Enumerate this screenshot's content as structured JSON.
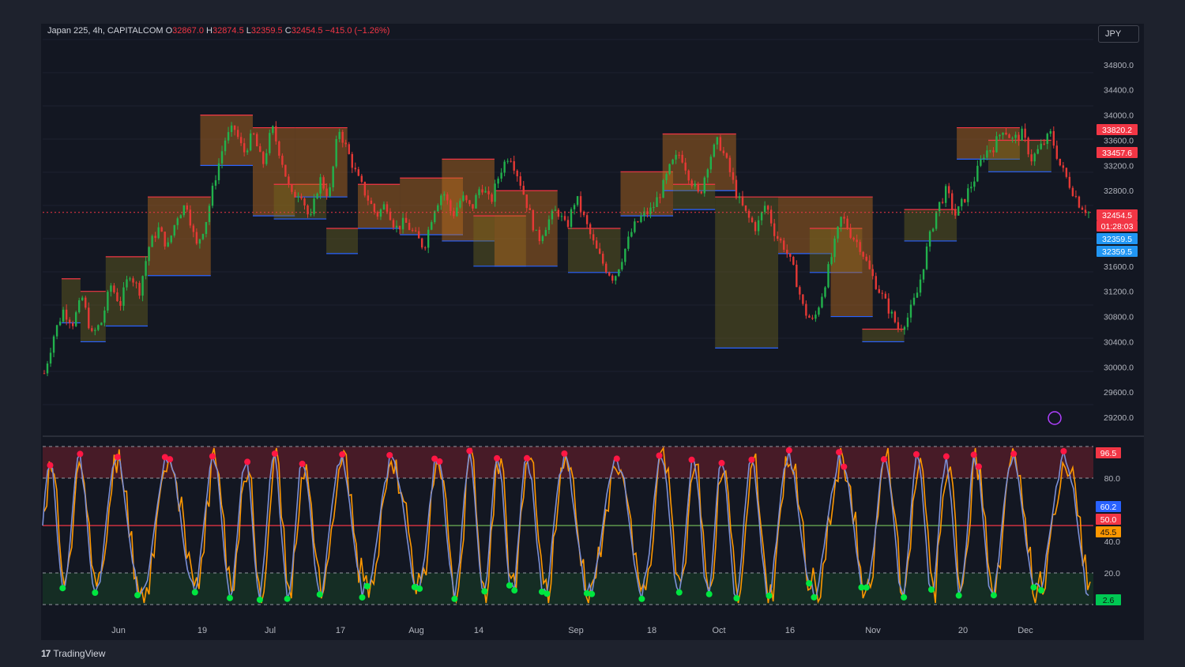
{
  "header": {
    "symbol": "Japan 225, 4h, CAPITALCOM",
    "o_label": "O",
    "o_value": "32867.0",
    "h_label": "H",
    "h_value": "32874.5",
    "l_label": "L",
    "l_value": "32359.5",
    "c_label": "C",
    "c_value": "32454.5",
    "change": "−415.0 (−1.26%)"
  },
  "currency": "JPY",
  "watermark": "TradingView",
  "colors": {
    "bg": "#131722",
    "up": "#26a69a",
    "down": "#ef5350",
    "candle_up": "#22b14c",
    "candle_down": "#e53935",
    "supply": "#f23645",
    "demand": "#2962ff",
    "k_line": "#7b8fd6",
    "d_line": "#ff9800"
  },
  "chart_data": [
    {
      "type": "candlestick",
      "title": "",
      "price_axis": {
        "ticks": [
          "34800.0",
          "34400.0",
          "34000.0",
          "33600.0",
          "33200.0",
          "32800.0",
          "31600.0",
          "31200.0",
          "30800.0",
          "30400.0",
          "30000.0",
          "29600.0",
          "29200.0"
        ],
        "range": [
          29050,
          35200
        ]
      },
      "time_axis": [
        "Jun",
        "19",
        "Jul",
        "17",
        "Aug",
        "14",
        "Sep",
        "18",
        "Oct",
        "16",
        "Nov",
        "20",
        "Dec"
      ],
      "price_labels": [
        {
          "text": "33820.2",
          "color": "#f23645"
        },
        {
          "text": "33457.6",
          "color": "#f23645"
        },
        {
          "text": "32454.5",
          "color": "#f23645"
        },
        {
          "text": "01:28:03",
          "color": "#f23645"
        },
        {
          "text": "32359.5",
          "color": "#2196f3"
        },
        {
          "text": "32359.5",
          "color": "#2196f3"
        }
      ],
      "close_path": [
        29900,
        30500,
        30900,
        30700,
        31100,
        30500,
        30700,
        31300,
        31000,
        31500,
        31200,
        31900,
        32200,
        31900,
        32400,
        32600,
        31900,
        32300,
        33000,
        33600,
        33800,
        33400,
        33700,
        33200,
        33800,
        33300,
        32700,
        32800,
        32300,
        33000,
        32700,
        33800,
        33400,
        33000,
        32700,
        32400,
        32600,
        32200,
        32300,
        32100,
        31900,
        32500,
        32800,
        32400,
        32700,
        32500,
        32900,
        32600,
        33100,
        33400,
        33000,
        32500,
        32000,
        32300,
        32500,
        32200,
        32700,
        32300,
        31900,
        31600,
        31400,
        31800,
        32200,
        32400,
        32500,
        32800,
        33200,
        33400,
        33000,
        32700,
        33300,
        33600,
        33200,
        32700,
        32400,
        32200,
        32600,
        32100,
        31900,
        31500,
        30900,
        30700,
        31200,
        31800,
        32400,
        32100,
        31900,
        31500,
        31200,
        30900,
        30600,
        30800,
        31200,
        31900,
        32500,
        32800,
        32400,
        32700,
        33000,
        33400,
        33500,
        33800,
        33600,
        33700,
        33300,
        33500,
        33700,
        33200,
        32900,
        32600,
        32454.5
      ],
      "zones": [
        {
          "x0": 0.018,
          "x1": 0.036,
          "y0": 31400,
          "y1": 30700,
          "kind": "demand"
        },
        {
          "x0": 0.036,
          "x1": 0.06,
          "y0": 31200,
          "y1": 30400,
          "kind": "demand"
        },
        {
          "x0": 0.06,
          "x1": 0.1,
          "y0": 31750,
          "y1": 30650,
          "kind": "demand"
        },
        {
          "x0": 0.1,
          "x1": 0.16,
          "y0": 32700,
          "y1": 31450,
          "kind": "supply"
        },
        {
          "x0": 0.15,
          "x1": 0.2,
          "y0": 34000,
          "y1": 33200,
          "kind": "supply"
        },
        {
          "x0": 0.2,
          "x1": 0.24,
          "y0": 33800,
          "y1": 32400,
          "kind": "supply"
        },
        {
          "x0": 0.22,
          "x1": 0.27,
          "y0": 32900,
          "y1": 32350,
          "kind": "demand"
        },
        {
          "x0": 0.24,
          "x1": 0.29,
          "y0": 33800,
          "y1": 32700,
          "kind": "supply"
        },
        {
          "x0": 0.27,
          "x1": 0.3,
          "y0": 32200,
          "y1": 31800,
          "kind": "demand"
        },
        {
          "x0": 0.3,
          "x1": 0.34,
          "y0": 32900,
          "y1": 32200,
          "kind": "supply"
        },
        {
          "x0": 0.34,
          "x1": 0.4,
          "y0": 33000,
          "y1": 32100,
          "kind": "supply"
        },
        {
          "x0": 0.38,
          "x1": 0.43,
          "y0": 33300,
          "y1": 32000,
          "kind": "supply"
        },
        {
          "x0": 0.41,
          "x1": 0.46,
          "y0": 32400,
          "y1": 31600,
          "kind": "demand"
        },
        {
          "x0": 0.43,
          "x1": 0.49,
          "y0": 32800,
          "y1": 31600,
          "kind": "supply"
        },
        {
          "x0": 0.5,
          "x1": 0.55,
          "y0": 32200,
          "y1": 31500,
          "kind": "demand"
        },
        {
          "x0": 0.55,
          "x1": 0.6,
          "y0": 33100,
          "y1": 32400,
          "kind": "supply"
        },
        {
          "x0": 0.59,
          "x1": 0.66,
          "y0": 33700,
          "y1": 32800,
          "kind": "supply"
        },
        {
          "x0": 0.6,
          "x1": 0.64,
          "y0": 32900,
          "y1": 32500,
          "kind": "demand"
        },
        {
          "x0": 0.64,
          "x1": 0.7,
          "y0": 32700,
          "y1": 30300,
          "kind": "demand"
        },
        {
          "x0": 0.7,
          "x1": 0.75,
          "y0": 32700,
          "y1": 31800,
          "kind": "supply"
        },
        {
          "x0": 0.73,
          "x1": 0.78,
          "y0": 32200,
          "y1": 31500,
          "kind": "demand"
        },
        {
          "x0": 0.75,
          "x1": 0.79,
          "y0": 32700,
          "y1": 30800,
          "kind": "supply"
        },
        {
          "x0": 0.78,
          "x1": 0.82,
          "y0": 30600,
          "y1": 30400,
          "kind": "demand"
        },
        {
          "x0": 0.82,
          "x1": 0.87,
          "y0": 32500,
          "y1": 32000,
          "kind": "demand"
        },
        {
          "x0": 0.87,
          "x1": 0.93,
          "y0": 33800,
          "y1": 33300,
          "kind": "supply"
        },
        {
          "x0": 0.9,
          "x1": 0.96,
          "y0": 33600,
          "y1": 33100,
          "kind": "demand"
        }
      ]
    },
    {
      "type": "line",
      "title": "",
      "y_ticks": [
        "80.0",
        "40.0",
        "20.0"
      ],
      "ylim": [
        0,
        100
      ],
      "bands": [
        {
          "from": 80,
          "to": 100,
          "color": "#5a1e2a"
        },
        {
          "from": 0,
          "to": 20,
          "color": "#173526"
        }
      ],
      "value_labels": [
        {
          "text": "96.5",
          "color": "#f23645"
        },
        {
          "text": "60.2",
          "color": "#2962ff"
        },
        {
          "text": "50.0",
          "color": "#f23645"
        },
        {
          "text": "45.5",
          "color": "#ff9800"
        },
        {
          "text": "2.6",
          "color": "#00c853"
        }
      ]
    }
  ]
}
